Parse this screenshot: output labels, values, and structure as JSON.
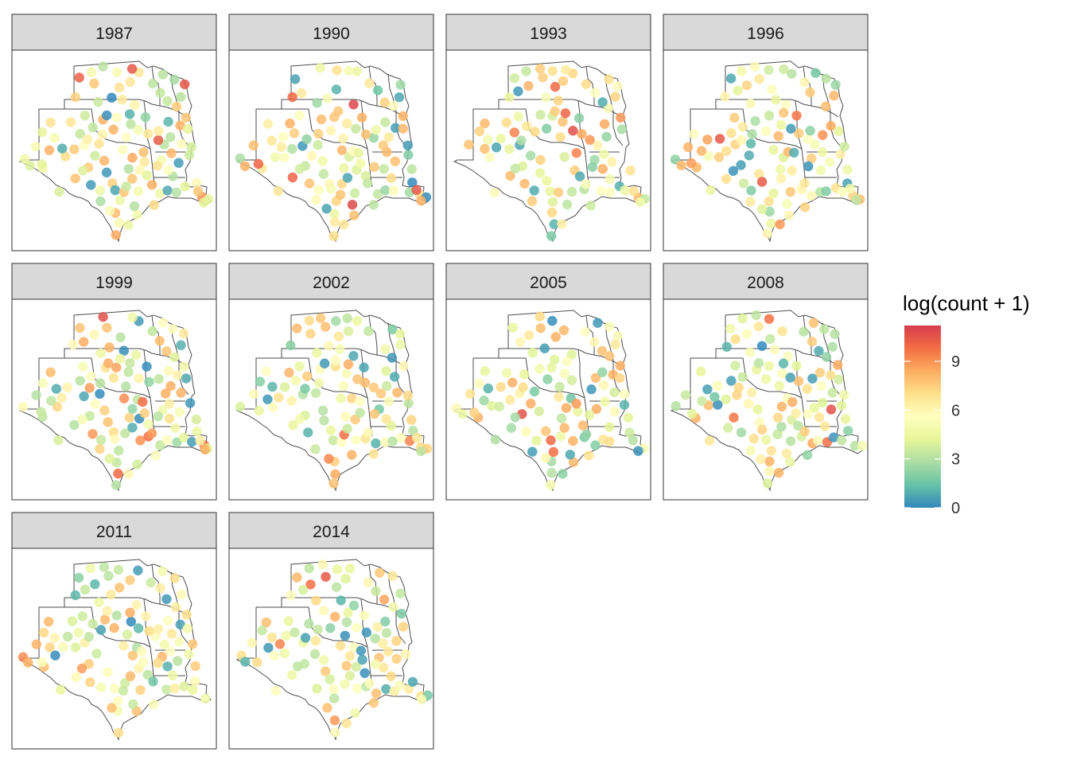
{
  "chart_data": {
    "type": "scatter",
    "panels": [
      "1987",
      "1990",
      "1993",
      "1996",
      "1999",
      "2002",
      "2005",
      "2008",
      "2011",
      "2014"
    ],
    "legend": {
      "title": "log(count + 1)",
      "ticks": [
        0,
        3,
        6,
        9
      ],
      "range": [
        0,
        11.2
      ],
      "position": "right",
      "palette": [
        "#3288bd",
        "#66c2a5",
        "#abdda4",
        "#e6f598",
        "#ffffbf",
        "#fee08b",
        "#fdae61",
        "#f46d43",
        "#d53e4f"
      ]
    },
    "colors": {
      "strip_bg": "#d9d9d9",
      "panel_border": "#333333",
      "state_line": "#4d4d4d"
    }
  }
}
